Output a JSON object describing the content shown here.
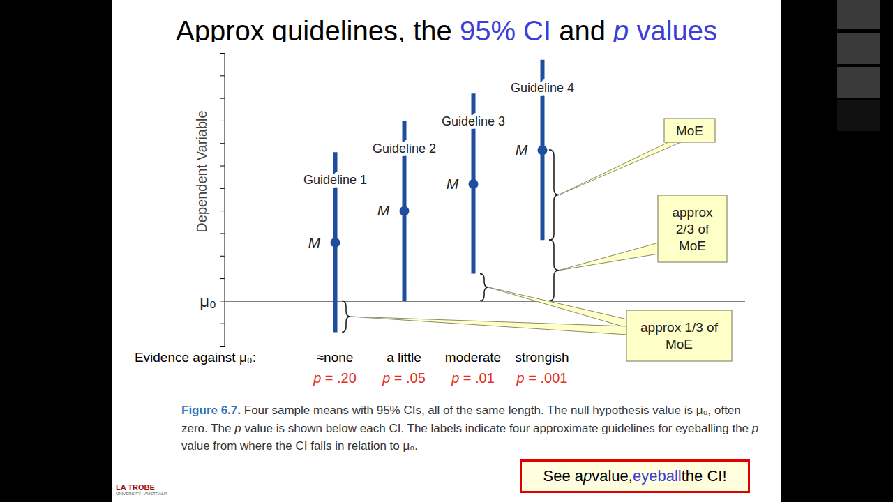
{
  "chart_data": {
    "type": "errorbar",
    "title": "Approx guidelines, the 95% CI and p values",
    "title_highlights": [
      "95% CI",
      "p values"
    ],
    "y_label": "Dependent Variable",
    "categories": [
      "Guideline 1",
      "Guideline 2",
      "Guideline 3",
      "Guideline 4"
    ],
    "mean_label": "M",
    "values": [
      1.3,
      2.0,
      2.6,
      3.35
    ],
    "moe": [
      2,
      2,
      2,
      2
    ],
    "color": "#1f4e9e",
    "reference_value": 0,
    "reference_label": "μ₀",
    "evidence_label": "Evidence against μ₀:",
    "evidence": [
      "≈none",
      "a little",
      "moderate",
      "strongish"
    ],
    "p_values": [
      0.2,
      0.05,
      0.01,
      0.001
    ],
    "p_value_labels": [
      "p = .20",
      "p = .05",
      "p = .01",
      "p = .001"
    ],
    "annotations": [
      {
        "text": "MoE"
      },
      {
        "text": "approx 2/3 of MoE"
      },
      {
        "text": "approx 1/3 of MoE"
      }
    ],
    "ylim": [
      -1,
      5.5
    ],
    "yticks": [
      -1,
      -0.5,
      0,
      0.5,
      1,
      1.5,
      2,
      2.5,
      3,
      3.5,
      4,
      4.5,
      5,
      5.5
    ],
    "tick_labels": false,
    "caption_label": "Figure 6.7.",
    "caption": "Four sample means with 95% CIs, all of the same length. The null hypothesis value is μ₀, often zero. The p value is shown below each CI. The labels indicate four approximate guidelines for eyeballing the p value from where the CI falls in relation to μ₀.",
    "note": "See a p value, eyeball the CI!",
    "note_highlight": "eyeball",
    "logo": "LA TROBE",
    "logo_subtitle": "UNIVERSITY · AUSTRALIA"
  }
}
